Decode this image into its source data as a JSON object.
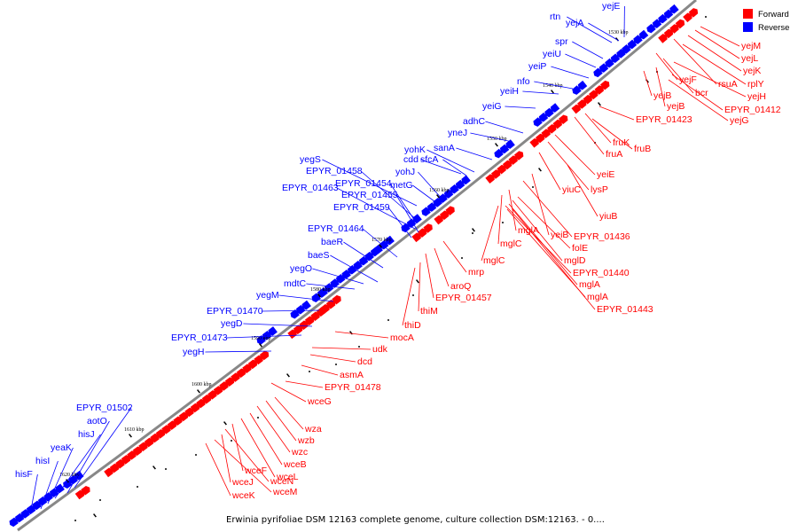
{
  "caption": "Erwinia pyrifoliae DSM 12163 complete genome, culture collection DSM:12163. - 0....",
  "legend": [
    {
      "label": "Forward",
      "color": "#ff0000"
    },
    {
      "label": "Reverse",
      "color": "#0000ff"
    }
  ],
  "colors": {
    "forward": "#ff0000",
    "reverse": "#0000ff",
    "backbone": "#888888"
  },
  "kbp_ticks": [
    "1530 kbp",
    "1540 kbp",
    "1550 kbp",
    "1560 kbp",
    "1570 kbp",
    "1580 kbp",
    "1590 kbp",
    "1600 kbp",
    "1610 kbp",
    "1620 kbp"
  ],
  "reverse_genes": [
    "yejE",
    "rtn",
    "yejA",
    "spr",
    "yeiU",
    "yeiP",
    "nfo",
    "yeiH",
    "yeiG",
    "adhC",
    "yneJ",
    "sanA",
    "yohK",
    "cdd",
    "sfcA",
    "yohJ",
    "metG",
    "yegS",
    "EPYR_01458",
    "EPYR_01454",
    "EPYR_01463",
    "EPYR_01455",
    "EPYR_01459",
    "EPYR_01464",
    "baeR",
    "baeS",
    "yegO",
    "mdtC",
    "yegM",
    "EPYR_01470",
    "yegD",
    "EPYR_01473",
    "yegH",
    "EPYR_01502",
    "aotO",
    "hisJ",
    "yeaK",
    "hisI",
    "hisF"
  ],
  "forward_genes": [
    "yejM",
    "yejL",
    "yejK",
    "rsuA",
    "rplY",
    "yejF",
    "bcr",
    "yejH",
    "yejB",
    "yejB",
    "EPYR_01412",
    "yejG",
    "EPYR_01423",
    "fruK",
    "fruA",
    "fruB",
    "yeiE",
    "lysP",
    "yiuC",
    "yiuB",
    "yeiB",
    "EPYR_01436",
    "mglA",
    "folE",
    "mglC",
    "mglD",
    "mglC",
    "EPYR_01440",
    "mglA",
    "mrp",
    "mglA",
    "aroQ",
    "EPYR_01443",
    "EPYR_01457",
    "thiM",
    "thiD",
    "mocA",
    "udk",
    "dcd",
    "asmA",
    "EPYR_01478",
    "wceG",
    "wza",
    "wzb",
    "wzc",
    "wceB",
    "wceL",
    "wceF",
    "wceN",
    "wceJ",
    "wceM",
    "wceK"
  ]
}
